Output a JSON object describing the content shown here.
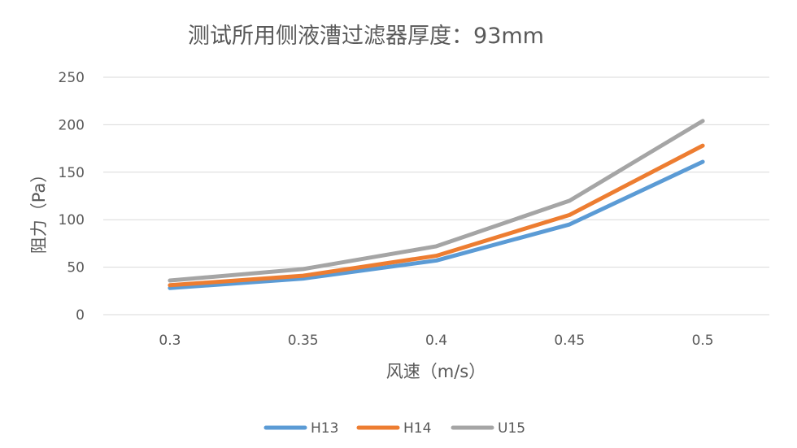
{
  "chart_data": {
    "type": "line",
    "title": "测试所用侧液漕过滤器厚度：93mm",
    "xlabel": "风速（m/s）",
    "ylabel": "阻力（Pa）",
    "categories": [
      "0.3",
      "0.35",
      "0.4",
      "0.45",
      "0.5"
    ],
    "ylim": [
      0,
      250
    ],
    "yticks": [
      "0",
      "50",
      "100",
      "150",
      "200",
      "250"
    ],
    "grid": true,
    "legend": "bottom",
    "series": [
      {
        "name": "H13",
        "color": "#5b9bd5",
        "values": [
          28,
          38,
          57,
          95,
          161
        ]
      },
      {
        "name": "H14",
        "color": "#ed7d31",
        "values": [
          31,
          41,
          62,
          105,
          178
        ]
      },
      {
        "name": "U15",
        "color": "#a5a5a5",
        "values": [
          36,
          48,
          72,
          120,
          204
        ]
      }
    ]
  }
}
